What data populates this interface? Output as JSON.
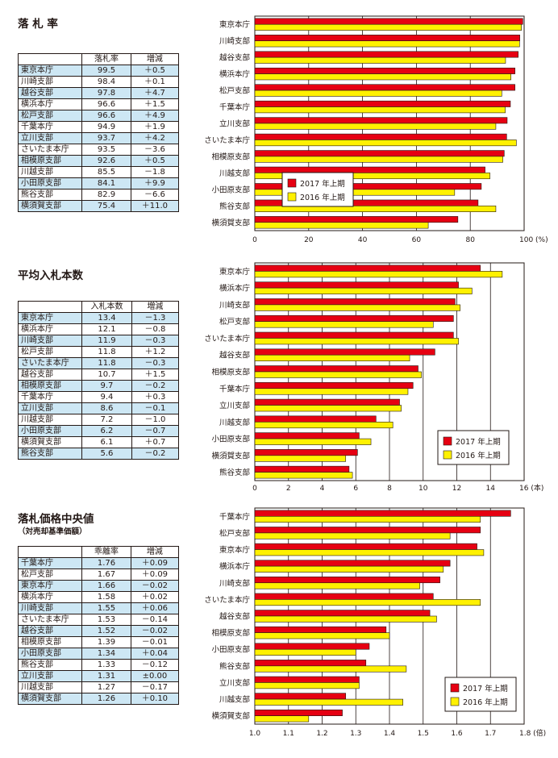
{
  "colors": {
    "current": "#e60012",
    "previous": "#fff100",
    "border": "#231815",
    "table_shade": "#cde7f4"
  },
  "sections": [
    {
      "title": "落 札 率",
      "subtitle": "",
      "table": {
        "headers": [
          "",
          "落札率",
          "増減"
        ],
        "rows": [
          [
            "東京本庁",
            "99.5",
            "＋0.5"
          ],
          [
            "川崎支部",
            "98.4",
            "＋0.1"
          ],
          [
            "越谷支部",
            "97.8",
            "＋4.7"
          ],
          [
            "横浜本庁",
            "96.6",
            "＋1.5"
          ],
          [
            "松戸支部",
            "96.6",
            "＋4.9"
          ],
          [
            "千葉本庁",
            "94.9",
            "＋1.9"
          ],
          [
            "立川支部",
            "93.7",
            "＋4.2"
          ],
          [
            "さいたま本庁",
            "93.5",
            "－3.6"
          ],
          [
            "相模原支部",
            "92.6",
            "＋0.5"
          ],
          [
            "川越支部",
            "85.5",
            "－1.8"
          ],
          [
            "小田原支部",
            "84.1",
            "＋9.9"
          ],
          [
            "熊谷支部",
            "82.9",
            "－6.6"
          ],
          [
            "横須賀支部",
            "75.4",
            "＋11.0"
          ]
        ]
      },
      "chart_data": {
        "type": "bar",
        "orientation": "horizontal",
        "categories": [
          "東京本庁",
          "川崎支部",
          "越谷支部",
          "横浜本庁",
          "松戸支部",
          "千葉本庁",
          "立川支部",
          "さいたま本庁",
          "相模原支部",
          "川越支部",
          "小田原支部",
          "熊谷支部",
          "横須賀支部"
        ],
        "series": [
          {
            "name": "2017 年上期",
            "values": [
              99.5,
              98.4,
              97.8,
              96.6,
              96.6,
              94.9,
              93.7,
              93.5,
              92.6,
              85.5,
              84.1,
              82.9,
              75.4
            ]
          },
          {
            "name": "2016 年上期",
            "values": [
              99.0,
              98.3,
              93.1,
              95.1,
              91.7,
              93.0,
              89.5,
              97.1,
              92.1,
              87.3,
              74.2,
              89.5,
              64.4
            ]
          }
        ],
        "xlim": [
          0,
          100
        ],
        "xticks": [
          0,
          20,
          40,
          60,
          80,
          100
        ],
        "unit": "(%)",
        "grid": true,
        "legend_position": "lower-middle"
      }
    },
    {
      "title": "平均入札本数",
      "subtitle": "",
      "table": {
        "headers": [
          "",
          "入札本数",
          "増減"
        ],
        "rows": [
          [
            "東京本庁",
            "13.4",
            "－1.3"
          ],
          [
            "横浜本庁",
            "12.1",
            "－0.8"
          ],
          [
            "川崎支部",
            "11.9",
            "－0.3"
          ],
          [
            "松戸支部",
            "11.8",
            "＋1.2"
          ],
          [
            "さいたま本庁",
            "11.8",
            "－0.3"
          ],
          [
            "越谷支部",
            "10.7",
            "＋1.5"
          ],
          [
            "相模原支部",
            "9.7",
            "－0.2"
          ],
          [
            "千葉本庁",
            "9.4",
            "＋0.3"
          ],
          [
            "立川支部",
            "8.6",
            "－0.1"
          ],
          [
            "川越支部",
            "7.2",
            "－1.0"
          ],
          [
            "小田原支部",
            "6.2",
            "－0.7"
          ],
          [
            "横須賀支部",
            "6.1",
            "＋0.7"
          ],
          [
            "熊谷支部",
            "5.6",
            "－0.2"
          ]
        ]
      },
      "chart_data": {
        "type": "bar",
        "orientation": "horizontal",
        "categories": [
          "東京本庁",
          "横浜本庁",
          "川崎支部",
          "松戸支部",
          "さいたま本庁",
          "越谷支部",
          "相模原支部",
          "千葉本庁",
          "立川支部",
          "川越支部",
          "小田原支部",
          "横須賀支部",
          "熊谷支部"
        ],
        "series": [
          {
            "name": "2017 年上期",
            "values": [
              13.4,
              12.1,
              11.9,
              11.8,
              11.8,
              10.7,
              9.7,
              9.4,
              8.6,
              7.2,
              6.2,
              6.1,
              5.6
            ]
          },
          {
            "name": "2016 年上期",
            "values": [
              14.7,
              12.9,
              12.2,
              10.6,
              12.1,
              9.2,
              9.9,
              9.1,
              8.7,
              8.2,
              6.9,
              5.4,
              5.8
            ]
          }
        ],
        "xlim": [
          0,
          16
        ],
        "xticks": [
          0,
          2,
          4,
          6,
          8,
          10,
          12,
          14,
          16
        ],
        "unit": "(本)",
        "grid": true,
        "legend_position": "bottom-right"
      }
    },
    {
      "title": "落札価格中央値",
      "subtitle": "（対売却基準価額）",
      "table": {
        "headers": [
          "",
          "乖離率",
          "増減"
        ],
        "rows": [
          [
            "千葉本庁",
            "1.76",
            "＋0.09"
          ],
          [
            "松戸支部",
            "1.67",
            "＋0.09"
          ],
          [
            "東京本庁",
            "1.66",
            "－0.02"
          ],
          [
            "横浜本庁",
            "1.58",
            "＋0.02"
          ],
          [
            "川崎支部",
            "1.55",
            "＋0.06"
          ],
          [
            "さいたま本庁",
            "1.53",
            "－0.14"
          ],
          [
            "越谷支部",
            "1.52",
            "－0.02"
          ],
          [
            "相模原支部",
            "1.39",
            "－0.01"
          ],
          [
            "小田原支部",
            "1.34",
            "＋0.04"
          ],
          [
            "熊谷支部",
            "1.33",
            "－0.12"
          ],
          [
            "立川支部",
            "1.31",
            "±0.00"
          ],
          [
            "川越支部",
            "1.27",
            "－0.17"
          ],
          [
            "横須賀支部",
            "1.26",
            "＋0.10"
          ]
        ]
      },
      "chart_data": {
        "type": "bar",
        "orientation": "horizontal",
        "categories": [
          "千葉本庁",
          "松戸支部",
          "東京本庁",
          "横浜本庁",
          "川崎支部",
          "さいたま本庁",
          "越谷支部",
          "相模原支部",
          "小田原支部",
          "熊谷支部",
          "立川支部",
          "川越支部",
          "横須賀支部"
        ],
        "series": [
          {
            "name": "2017 年上期",
            "values": [
              1.76,
              1.67,
              1.66,
              1.58,
              1.55,
              1.53,
              1.52,
              1.39,
              1.34,
              1.33,
              1.31,
              1.27,
              1.26
            ]
          },
          {
            "name": "2016 年上期",
            "values": [
              1.67,
              1.58,
              1.68,
              1.56,
              1.49,
              1.67,
              1.54,
              1.4,
              1.3,
              1.45,
              1.31,
              1.44,
              1.16
            ]
          }
        ],
        "xlim": [
          1.0,
          1.8
        ],
        "xticks": [
          1.0,
          1.1,
          1.2,
          1.3,
          1.4,
          1.5,
          1.6,
          1.7,
          1.8
        ],
        "tick_format": "1dp",
        "unit": "(倍)",
        "grid": true,
        "legend_position": "bottom-right"
      }
    }
  ]
}
